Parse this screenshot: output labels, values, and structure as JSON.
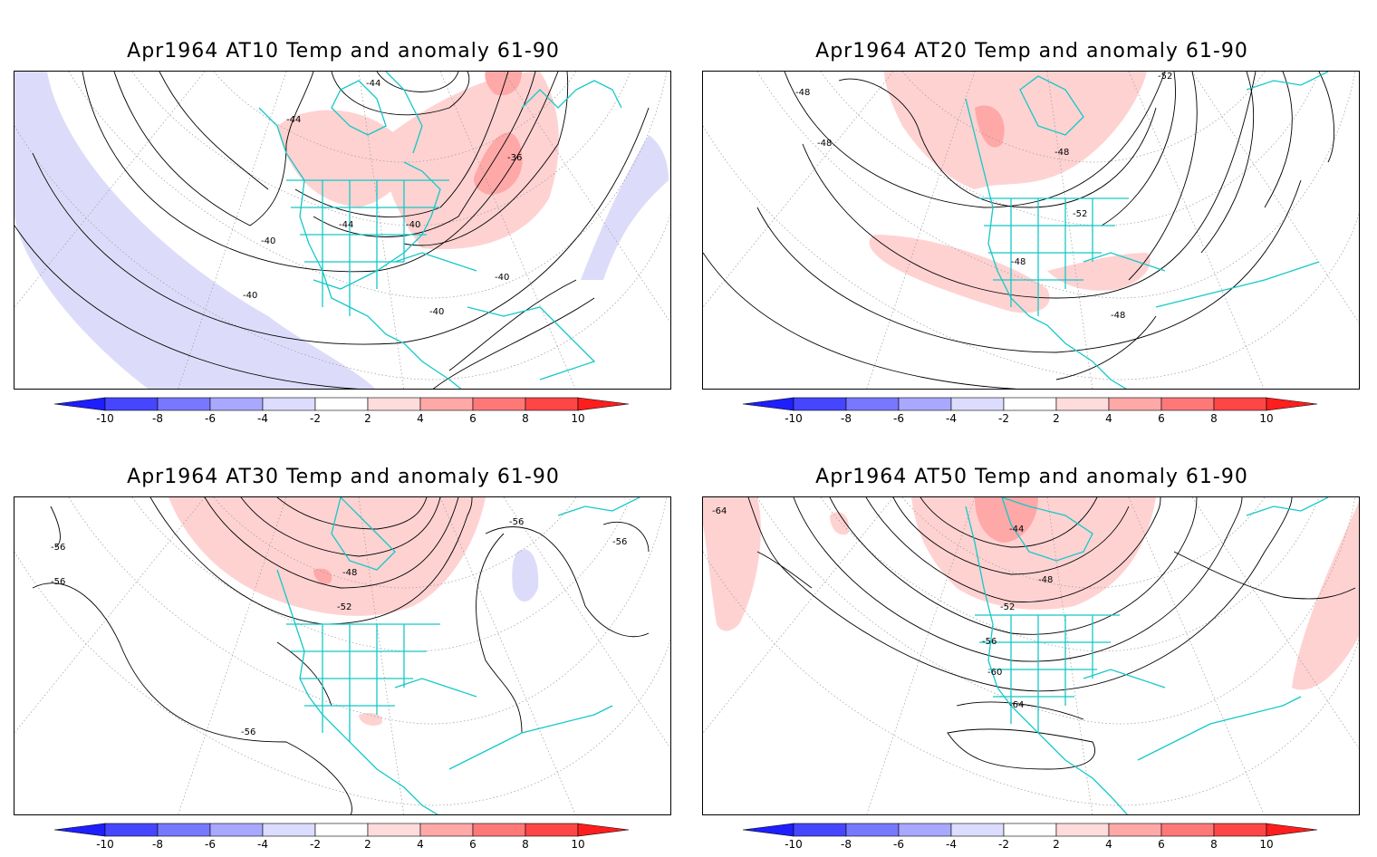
{
  "panels": [
    {
      "id": "at10",
      "title": "Apr1964 AT10 Temp and anomaly 61-90",
      "contour_labels": [
        "-44",
        "-44",
        "-36",
        "-44",
        "-40",
        "-40",
        "-40",
        "-40",
        "-40"
      ]
    },
    {
      "id": "at20",
      "title": "Apr1964 AT20 Temp and anomaly 61-90",
      "contour_labels": [
        "-48",
        "-48",
        "-52",
        "-48",
        "-52",
        "-48",
        "-48"
      ]
    },
    {
      "id": "at30",
      "title": "Apr1964 AT30 Temp and anomaly 61-90",
      "contour_labels": [
        "-56",
        "-56",
        "-56",
        "-56",
        "-48",
        "-52",
        "-56"
      ]
    },
    {
      "id": "at50",
      "title": "Apr1964 AT50 Temp and anomaly 61-90",
      "contour_labels": [
        "-64",
        "-44",
        "-48",
        "-52",
        "-56",
        "-60",
        "-64"
      ]
    }
  ],
  "colorbar": {
    "ticks": [
      "-10",
      "-8",
      "-6",
      "-4",
      "-2",
      "2",
      "4",
      "6",
      "8",
      "10"
    ],
    "colors": [
      "#1e1eff",
      "#4646ff",
      "#7878ff",
      "#a8a8ff",
      "#dcdcff",
      "#ffffff",
      "#ffdcdc",
      "#ffa8a8",
      "#ff7878",
      "#ff4646",
      "#ff1e1e"
    ]
  },
  "colors": {
    "coastline": "#14c8c8",
    "contour": "#000000",
    "grid": "#9a9a9a",
    "anomaly_warm": "#ffd2d2",
    "anomaly_warm_strong": "#ffa0a0",
    "anomaly_cold": "#dcdcfa"
  }
}
